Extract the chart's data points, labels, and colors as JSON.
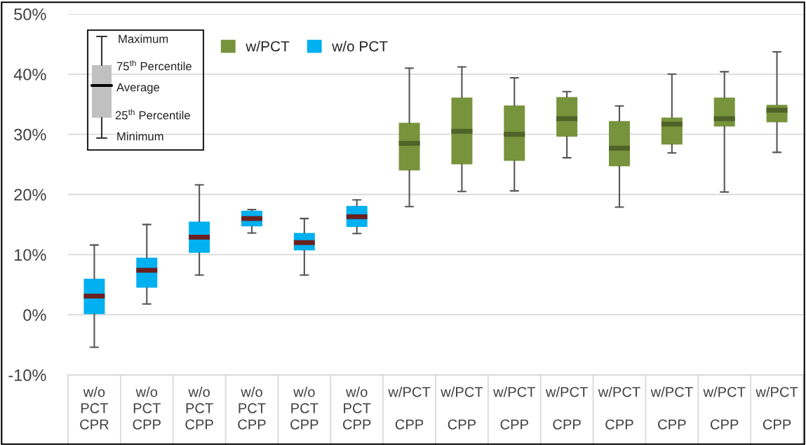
{
  "chart_data": {
    "type": "box",
    "categories": [
      "w/o\nPCT\nCPR",
      "w/o\nPCT\nCPP",
      "w/o\nPCT\nCPP",
      "w/o\nPCT\nCPP",
      "w/o\nPCT\nCPP",
      "w/o\nPCT\nCPP",
      "w/PCT\n\nCPP",
      "w/PCT\n\nCPP",
      "w/PCT\n\nCPP",
      "w/PCT\n\nCPP",
      "w/PCT\n\nCPP",
      "w/PCT\n\nCPP",
      "w/PCT\n\nCPP",
      "w/PCT\n\nCPP"
    ],
    "series": [
      {
        "name": "w/PCT",
        "color": "#77933c",
        "boxes": [
          null,
          null,
          null,
          null,
          null,
          null,
          {
            "low": 18.0,
            "q1": 24.0,
            "median": 28.5,
            "q3": 31.9,
            "high": 41.0
          },
          {
            "low": 20.5,
            "q1": 25.0,
            "median": 30.5,
            "q3": 36.1,
            "high": 41.2
          },
          {
            "low": 20.6,
            "q1": 25.6,
            "median": 30.0,
            "q3": 34.8,
            "high": 39.4
          },
          {
            "low": 26.1,
            "q1": 29.6,
            "median": 32.6,
            "q3": 36.2,
            "high": 37.1
          },
          {
            "low": 17.9,
            "q1": 24.7,
            "median": 27.7,
            "q3": 32.2,
            "high": 34.7
          },
          {
            "low": 26.9,
            "q1": 28.3,
            "median": 31.7,
            "q3": 32.8,
            "high": 40.0
          },
          {
            "low": 20.4,
            "q1": 31.3,
            "median": 32.6,
            "q3": 36.1,
            "high": 40.4
          },
          {
            "low": 27.0,
            "q1": 32.0,
            "median": 34.0,
            "q3": 34.9,
            "high": 43.7
          }
        ]
      },
      {
        "name": "w/o PCT",
        "color": "#00b0f0",
        "boxes": [
          {
            "low": -5.4,
            "q1": 0.1,
            "median": 3.1,
            "q3": 6.0,
            "high": 11.6
          },
          {
            "low": 1.8,
            "q1": 4.5,
            "median": 7.4,
            "q3": 9.5,
            "high": 15.0
          },
          {
            "low": 6.6,
            "q1": 10.3,
            "median": 12.9,
            "q3": 15.5,
            "high": 21.6
          },
          {
            "low": 13.6,
            "q1": 14.7,
            "median": 16.0,
            "q3": 17.3,
            "high": 17.5
          },
          {
            "low": 6.6,
            "q1": 10.7,
            "median": 12.0,
            "q3": 13.6,
            "high": 16.0
          },
          {
            "low": 13.5,
            "q1": 14.6,
            "median": 16.3,
            "q3": 18.1,
            "high": 19.1
          },
          null,
          null,
          null,
          null,
          null,
          null,
          null,
          null
        ]
      }
    ],
    "ylim": [
      -10,
      50
    ],
    "yticks": [
      {
        "value": -10,
        "label": "-10%"
      },
      {
        "value": 0,
        "label": "0%"
      },
      {
        "value": 10,
        "label": "10%"
      },
      {
        "value": 20,
        "label": "20%"
      },
      {
        "value": 30,
        "label": "30%"
      },
      {
        "value": 40,
        "label": "40%"
      },
      {
        "value": 50,
        "label": "50%"
      }
    ],
    "grid": "y",
    "legend": "top left",
    "annotations": [
      "Maximum",
      "75$^{th}$ Percentile",
      "Average",
      "25$^{th}$ Percentile",
      "Minimum"
    ]
  }
}
